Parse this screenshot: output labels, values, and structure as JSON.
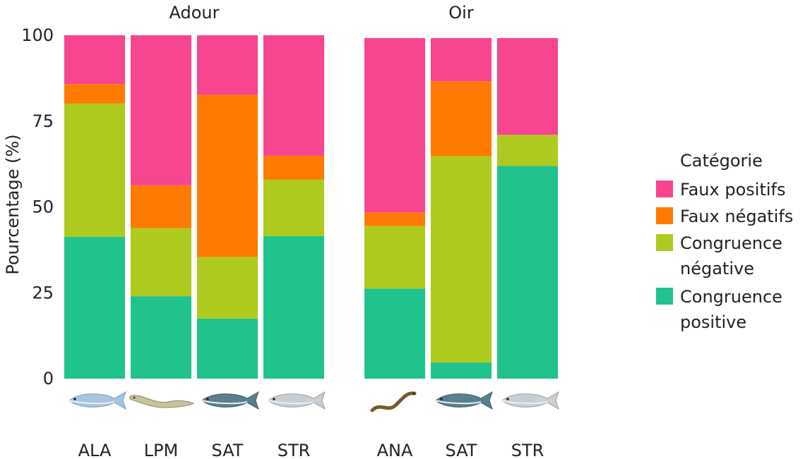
{
  "chart_data": {
    "type": "bar",
    "stacked": true,
    "ylabel": "Pourcentage (%)",
    "xlabel": "",
    "ylim": [
      0,
      100
    ],
    "yticks": [
      0,
      25,
      50,
      75,
      100
    ],
    "grid": false,
    "legend": {
      "title": "Catégorie",
      "placement": "right",
      "entries": [
        {
          "key": "fp",
          "lines": [
            "Faux positifs"
          ],
          "color": "#f74590"
        },
        {
          "key": "fn",
          "lines": [
            "Faux négatifs"
          ],
          "color": "#ff7a00"
        },
        {
          "key": "cn",
          "lines": [
            "Congruence",
            "négative"
          ],
          "color": "#afca1e"
        },
        {
          "key": "cp",
          "lines": [
            "Congruence",
            "positive"
          ],
          "color": "#20c28e"
        }
      ]
    },
    "stack_order": [
      "cp",
      "cn",
      "fn",
      "fp"
    ],
    "panels": [
      {
        "title": "Adour",
        "categories": [
          "ALA",
          "LPM",
          "SAT",
          "STR"
        ],
        "icons": [
          "shad-fish-icon",
          "lamprey-icon",
          "salmon-icon",
          "trout-icon"
        ],
        "series": [
          {
            "key": "cp",
            "name": "Congruence positive",
            "values": [
              41.3,
              24,
              17.5,
              41.5
            ]
          },
          {
            "key": "cn",
            "name": "Congruence négative",
            "values": [
              38.8,
              19.8,
              17.9,
              16.5
            ]
          },
          {
            "key": "fn",
            "name": "Faux négatifs",
            "values": [
              5.7,
              12.5,
              47.3,
              6.9
            ]
          },
          {
            "key": "fp",
            "name": "Faux positifs",
            "values": [
              14.2,
              43.7,
              17.3,
              35.1
            ]
          }
        ]
      },
      {
        "title": "Oir",
        "categories": [
          "ANA",
          "SAT",
          "STR"
        ],
        "icons": [
          "eel-icon",
          "salmon-icon",
          "trout-icon"
        ],
        "series": [
          {
            "key": "cp",
            "name": "Congruence positive",
            "values": [
              26.2,
              4.7,
              61.9
            ]
          },
          {
            "key": "cn",
            "name": "Congruence négative",
            "values": [
              18.2,
              60.1,
              9.1
            ]
          },
          {
            "key": "fn",
            "name": "Faux négatifs",
            "values": [
              4.0,
              21.8,
              0
            ]
          },
          {
            "key": "fp",
            "name": "Faux positifs",
            "values": [
              50.8,
              12.6,
              28.2
            ]
          }
        ]
      }
    ]
  }
}
